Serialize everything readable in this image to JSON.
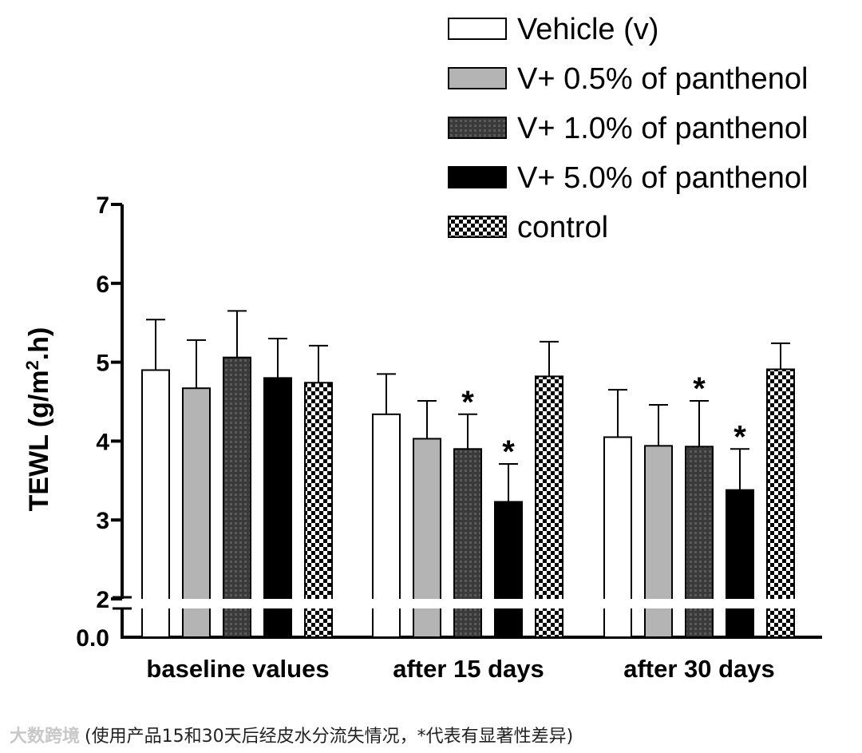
{
  "chart_data": {
    "type": "bar",
    "ylabel": "TEWL (g/m².h)",
    "ylabel_parts": [
      "TEWL (g/m",
      "2",
      ".h)"
    ],
    "y_ticks": [
      "0.0",
      "2",
      "3",
      "4",
      "5",
      "6",
      "7"
    ],
    "ylim": [
      2,
      7
    ],
    "axis_break": true,
    "categories": [
      "baseline values",
      "after 15 days",
      "after 30 days"
    ],
    "legend_position": "top-right",
    "series": [
      {
        "name": "Vehicle (v)",
        "pattern": "white",
        "values": [
          4.9,
          4.34,
          4.05
        ],
        "errors": [
          0.64,
          0.51,
          0.6
        ],
        "significant": [
          false,
          false,
          false
        ]
      },
      {
        "name": "V+ 0.5% of panthenol",
        "pattern": "light-gray",
        "values": [
          4.67,
          4.03,
          3.94
        ],
        "errors": [
          0.61,
          0.48,
          0.52
        ],
        "significant": [
          false,
          false,
          false
        ]
      },
      {
        "name": "V+ 1.0% of panthenol",
        "pattern": "dark-gray",
        "values": [
          5.06,
          3.9,
          3.93
        ],
        "errors": [
          0.59,
          0.44,
          0.58
        ],
        "significant": [
          false,
          true,
          true
        ]
      },
      {
        "name": "V+ 5.0% of panthenol",
        "pattern": "black",
        "values": [
          4.8,
          3.23,
          3.38
        ],
        "errors": [
          0.5,
          0.48,
          0.52
        ],
        "significant": [
          false,
          true,
          true
        ]
      },
      {
        "name": "control",
        "pattern": "checker",
        "values": [
          4.74,
          4.82,
          4.91
        ],
        "errors": [
          0.47,
          0.44,
          0.33
        ],
        "significant": [
          false,
          false,
          false
        ]
      }
    ],
    "significance_marker": "*"
  },
  "caption": {
    "watermark": "大数跨境",
    "text": "(使用产品15和30天后经皮水分流失情况，*代表有显著性差异)"
  }
}
